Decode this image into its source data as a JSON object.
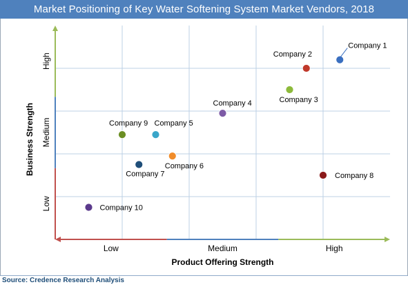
{
  "chart_data": {
    "type": "scatter",
    "title": "Market Positioning  of Key Water Softening System Market Vendors, 2018",
    "xlabel": "Product Offering Strength",
    "ylabel": "Business Strength",
    "x_ticks": [
      "Low",
      "Medium",
      "High"
    ],
    "y_ticks": [
      "Low",
      "Medium",
      "High"
    ],
    "xlim": [
      0,
      10
    ],
    "ylim": [
      0,
      10
    ],
    "grid": true,
    "points": [
      {
        "label": "Company 1",
        "x": 8.5,
        "y": 8.4,
        "color": "#3a6fc0"
      },
      {
        "label": "Company 2",
        "x": 7.5,
        "y": 8.0,
        "color": "#c0392b"
      },
      {
        "label": "Company 3",
        "x": 7.0,
        "y": 7.0,
        "color": "#8dba3b"
      },
      {
        "label": "Company 4",
        "x": 5.0,
        "y": 5.9,
        "color": "#7d5ba6"
      },
      {
        "label": "Company 5",
        "x": 3.0,
        "y": 4.9,
        "color": "#3aa6c9"
      },
      {
        "label": "Company 6",
        "x": 3.5,
        "y": 3.9,
        "color": "#f08c2a"
      },
      {
        "label": "Company 7",
        "x": 2.5,
        "y": 3.5,
        "color": "#1f4e79"
      },
      {
        "label": "Company 8",
        "x": 8.0,
        "y": 3.0,
        "color": "#8b1a1a"
      },
      {
        "label": "Company 9",
        "x": 2.0,
        "y": 4.9,
        "color": "#6b8e23"
      },
      {
        "label": "Company 10",
        "x": 1.0,
        "y": 1.5,
        "color": "#5b3a8c"
      }
    ]
  },
  "source": "Source: Credence Research Analysis",
  "colors": {
    "title_bar": "#4f81bd",
    "grid": "#bcd0e6",
    "y_axis_low": "#c0504d",
    "y_axis_mid": "#4f81bd",
    "y_axis_high": "#9bbb59",
    "x_axis_low": "#c0504d",
    "x_axis_mid": "#4f81bd",
    "x_axis_high": "#9bbb59"
  }
}
